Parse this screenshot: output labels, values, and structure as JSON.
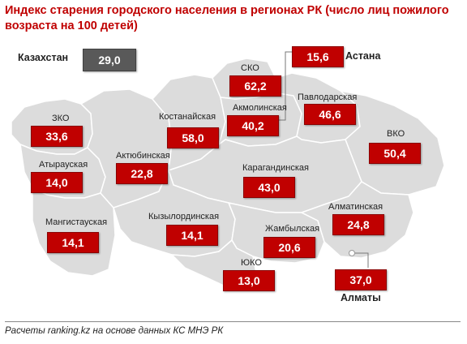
{
  "title": "Индекс старения городского населения в регионах РК (число лиц пожилого возраста на 100 детей)",
  "colors": {
    "badge": "#c00000",
    "kazakhstan_badge": "#595959",
    "map_fill": "#dcdcdc",
    "map_border": "#ffffff"
  },
  "kazakhstan": {
    "label": "Казахстан",
    "value": "29,0"
  },
  "regions": {
    "zko": {
      "label": "ЗКО",
      "value": "33,6"
    },
    "atyrau": {
      "label": "Атырауская",
      "value": "14,0"
    },
    "mangystau": {
      "label": "Мангистауская",
      "value": "14,1"
    },
    "aktobe": {
      "label": "Актюбинская",
      "value": "22,8"
    },
    "kostanay": {
      "label": "Костанайская",
      "value": "58,0"
    },
    "sko": {
      "label": "СКО",
      "value": "62,2"
    },
    "akmola": {
      "label": "Акмолинская",
      "value": "40,2"
    },
    "astana": {
      "label": "Астана",
      "value": "15,6"
    },
    "pavlodar": {
      "label": "Павлодарская",
      "value": "46,6"
    },
    "vko": {
      "label": "ВКО",
      "value": "50,4"
    },
    "karaganda": {
      "label": "Карагандинская",
      "value": "43,0"
    },
    "kyzylorda": {
      "label": "Кызылординская",
      "value": "14,1"
    },
    "zhambyl": {
      "label": "Жамбылская",
      "value": "20,6"
    },
    "almaty_region": {
      "label": "Алматинская",
      "value": "24,8"
    },
    "yuko": {
      "label": "ЮКО",
      "value": "13,0"
    },
    "almaty_city": {
      "label": "Алматы",
      "value": "37,0"
    }
  },
  "source": "Расчеты ranking.kz  на основе данных  КС МНЭ РК"
}
